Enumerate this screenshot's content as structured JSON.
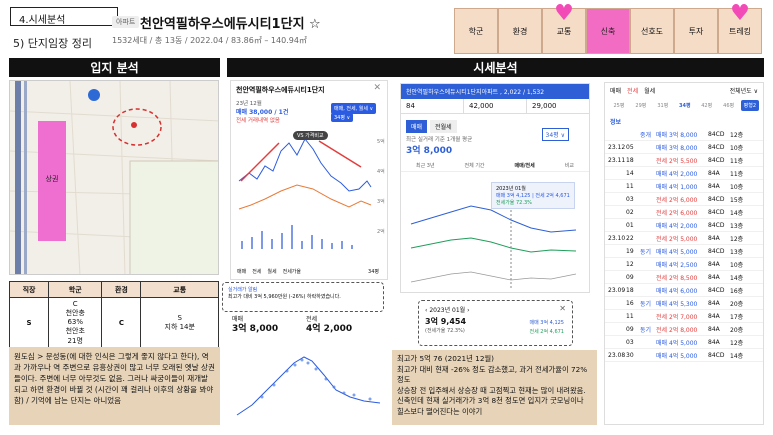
{
  "header": {
    "section": "4.시세분석",
    "subtitle": "5) 단지임장 정리",
    "tag": "아파트",
    "apt_title": "천안역필하우스에듀시티1단지 ☆",
    "apt_meta": "1532세대 / 총 13동 / 2022.04 / 83.86㎡ – 140.94㎡"
  },
  "topnav": [
    {
      "label": "학군",
      "active": false,
      "heart": false
    },
    {
      "label": "환경",
      "active": false,
      "heart": false
    },
    {
      "label": "교통",
      "active": false,
      "heart": true
    },
    {
      "label": "신축",
      "active": true,
      "heart": false
    },
    {
      "label": "선호도",
      "active": false,
      "heart": false
    },
    {
      "label": "투자",
      "active": false,
      "heart": false
    },
    {
      "label": "트레킹",
      "active": false,
      "heart": true
    }
  ],
  "bands": {
    "location": "입지 분석",
    "price": "시세분석"
  },
  "map": {
    "pin_label": "상권"
  },
  "grade_table": {
    "headers": [
      "직장",
      "학군",
      "환경",
      "교통"
    ],
    "values": [
      "S",
      "C\n천안충\n63%\n천안초\n21명",
      "C",
      "S\n지하 14분"
    ]
  },
  "notes": {
    "left": "원도심 > 문성동(에 대한 인식은 그렇게 좋지 않다고 한다), 역과 가까우나 역 주변으로 유흥상권이 많고 너무 오래된 옛날 상권들이다. 주변에 너무 아무것도 없음. 그러나 싸궁이들이 재개발 되고 하면 환경이 바뀔 것 (시간이 꽤 걸리나 이후의 상황을 봐야함) / 기억에 남는 단지는 아니었음",
    "right": "최고가 5억 76 (2021년 12월)\n최고가 대비 현재 -26% 정도 감소했고, 과거 전세가율이 72%정도\n상승장 전 입주해서 상승장 때 고점찍고 현재는 많이 내려왔음. 신축인데 현재 실거래가가 3억 8천 정도면 입지가 굿모닝이나 힐스보다 떨어진다는 이야기"
  },
  "chart1": {
    "title": "천안역필하우스에듀시티1단지",
    "date": "23년 12월",
    "price": "매매 38,000 / 1건",
    "sub": "전세 거래내역 없음",
    "vs_label": "VS 가격비교",
    "filter_top": "매매, 전세, 월세 ∨",
    "filter_area": "34평 ∨",
    "tabs": [
      "매매",
      "전세",
      "월세",
      "전세가율"
    ],
    "selected_area": "34평",
    "info_title": "실거래가 알림",
    "info_text": "최고가 대비 3억 5,960만원 (-26%) 하락하였습니다.",
    "sale_label": "매매",
    "sale_value": "3억 8,000",
    "rent_label": "전세",
    "rent_value": "4억 2,000",
    "y_ticks": [
      "5억",
      "4억",
      "3억",
      "2억"
    ]
  },
  "mid": {
    "header": "천안역필하우스에듀시티1단지아파트 , 2,022 / 1,532",
    "cells": [
      "84",
      "42,000",
      "29,000"
    ],
    "tabs": [
      "매매",
      "전월세"
    ],
    "area": "34평 ∨",
    "recent_label": "최근 실거래 기준 1개월 평균",
    "recent_value": "3억 8,000",
    "sub_tabs": [
      "최근 3년",
      "전체 기간",
      "매매/전세",
      "비교"
    ],
    "tooltip_date": "2023년 01월",
    "tooltip_line1": "매매 3억 4,125 | 전세 2억 4,671",
    "tooltip_line2": "전세가율 72.3%",
    "popup_date": "2023년 01월",
    "popup_price": "3억 9,454",
    "popup_jeonse": "(전세가율 72.3%)",
    "popup_sale": "매매 3억 4,125",
    "popup_rent": "전세 2억 4,671"
  },
  "right_panel": {
    "tabs": [
      "매매",
      "전세",
      "월세"
    ],
    "filter": "전체년도 ∨",
    "area_tabs": [
      "25평",
      "29평",
      "31평",
      "34평",
      "42평",
      "46평"
    ],
    "active_area": "34평",
    "button": "평형2",
    "list_header": "정보",
    "rows": [
      {
        "d1": "",
        "d2": "",
        "t": "중개",
        "p": "매매 3억 8,000",
        "a": "84CD",
        "f": "12층",
        "c": "blue"
      },
      {
        "d1": "23.12",
        "d2": "05",
        "t": "",
        "p": "매매 3억 8,000",
        "a": "84CD",
        "f": "10층",
        "c": "blue"
      },
      {
        "d1": "23.11",
        "d2": "18",
        "t": "",
        "p": "전세 2억 5,500",
        "a": "84CD",
        "f": "11층",
        "c": "red"
      },
      {
        "d1": "",
        "d2": "14",
        "t": "",
        "p": "매매 4억 2,000",
        "a": "84A",
        "f": "11층",
        "c": "blue"
      },
      {
        "d1": "",
        "d2": "11",
        "t": "",
        "p": "매매 4억 1,000",
        "a": "84A",
        "f": "10층",
        "c": "blue"
      },
      {
        "d1": "",
        "d2": "03",
        "t": "",
        "p": "전세 2억 6,000",
        "a": "84CD",
        "f": "15층",
        "c": "red"
      },
      {
        "d1": "",
        "d2": "02",
        "t": "",
        "p": "전세 2억 6,000",
        "a": "84CD",
        "f": "14층",
        "c": "red"
      },
      {
        "d1": "",
        "d2": "01",
        "t": "",
        "p": "매매 4억 2,000",
        "a": "84CD",
        "f": "13층",
        "c": "blue"
      },
      {
        "d1": "23.10",
        "d2": "22",
        "t": "",
        "p": "전세 2억 5,000",
        "a": "84A",
        "f": "12층",
        "c": "red"
      },
      {
        "d1": "",
        "d2": "19",
        "t": "동기",
        "p": "매매 4억 5,000",
        "a": "84CD",
        "f": "13층",
        "c": "blue"
      },
      {
        "d1": "",
        "d2": "12",
        "t": "",
        "p": "매매 4억 2,500",
        "a": "84A",
        "f": "10층",
        "c": "blue"
      },
      {
        "d1": "",
        "d2": "09",
        "t": "",
        "p": "전세 2억 8,500",
        "a": "84A",
        "f": "14층",
        "c": "red"
      },
      {
        "d1": "23.09",
        "d2": "18",
        "t": "",
        "p": "매매 4억 6,000",
        "a": "84CD",
        "f": "16층",
        "c": "blue"
      },
      {
        "d1": "",
        "d2": "16",
        "t": "동기",
        "p": "매매 4억 5,300",
        "a": "84A",
        "f": "20층",
        "c": "blue"
      },
      {
        "d1": "",
        "d2": "11",
        "t": "",
        "p": "전세 2억 7,000",
        "a": "84A",
        "f": "17층",
        "c": "red"
      },
      {
        "d1": "",
        "d2": "09",
        "t": "동기",
        "p": "전세 2억 8,000",
        "a": "84A",
        "f": "20층",
        "c": "red"
      },
      {
        "d1": "",
        "d2": "03",
        "t": "",
        "p": "매매 4억 5,000",
        "a": "84A",
        "f": "12층",
        "c": "blue"
      },
      {
        "d1": "23.08",
        "d2": "30",
        "t": "",
        "p": "매매 4억 5,000",
        "a": "84CD",
        "f": "14층",
        "c": "blue"
      }
    ]
  }
}
